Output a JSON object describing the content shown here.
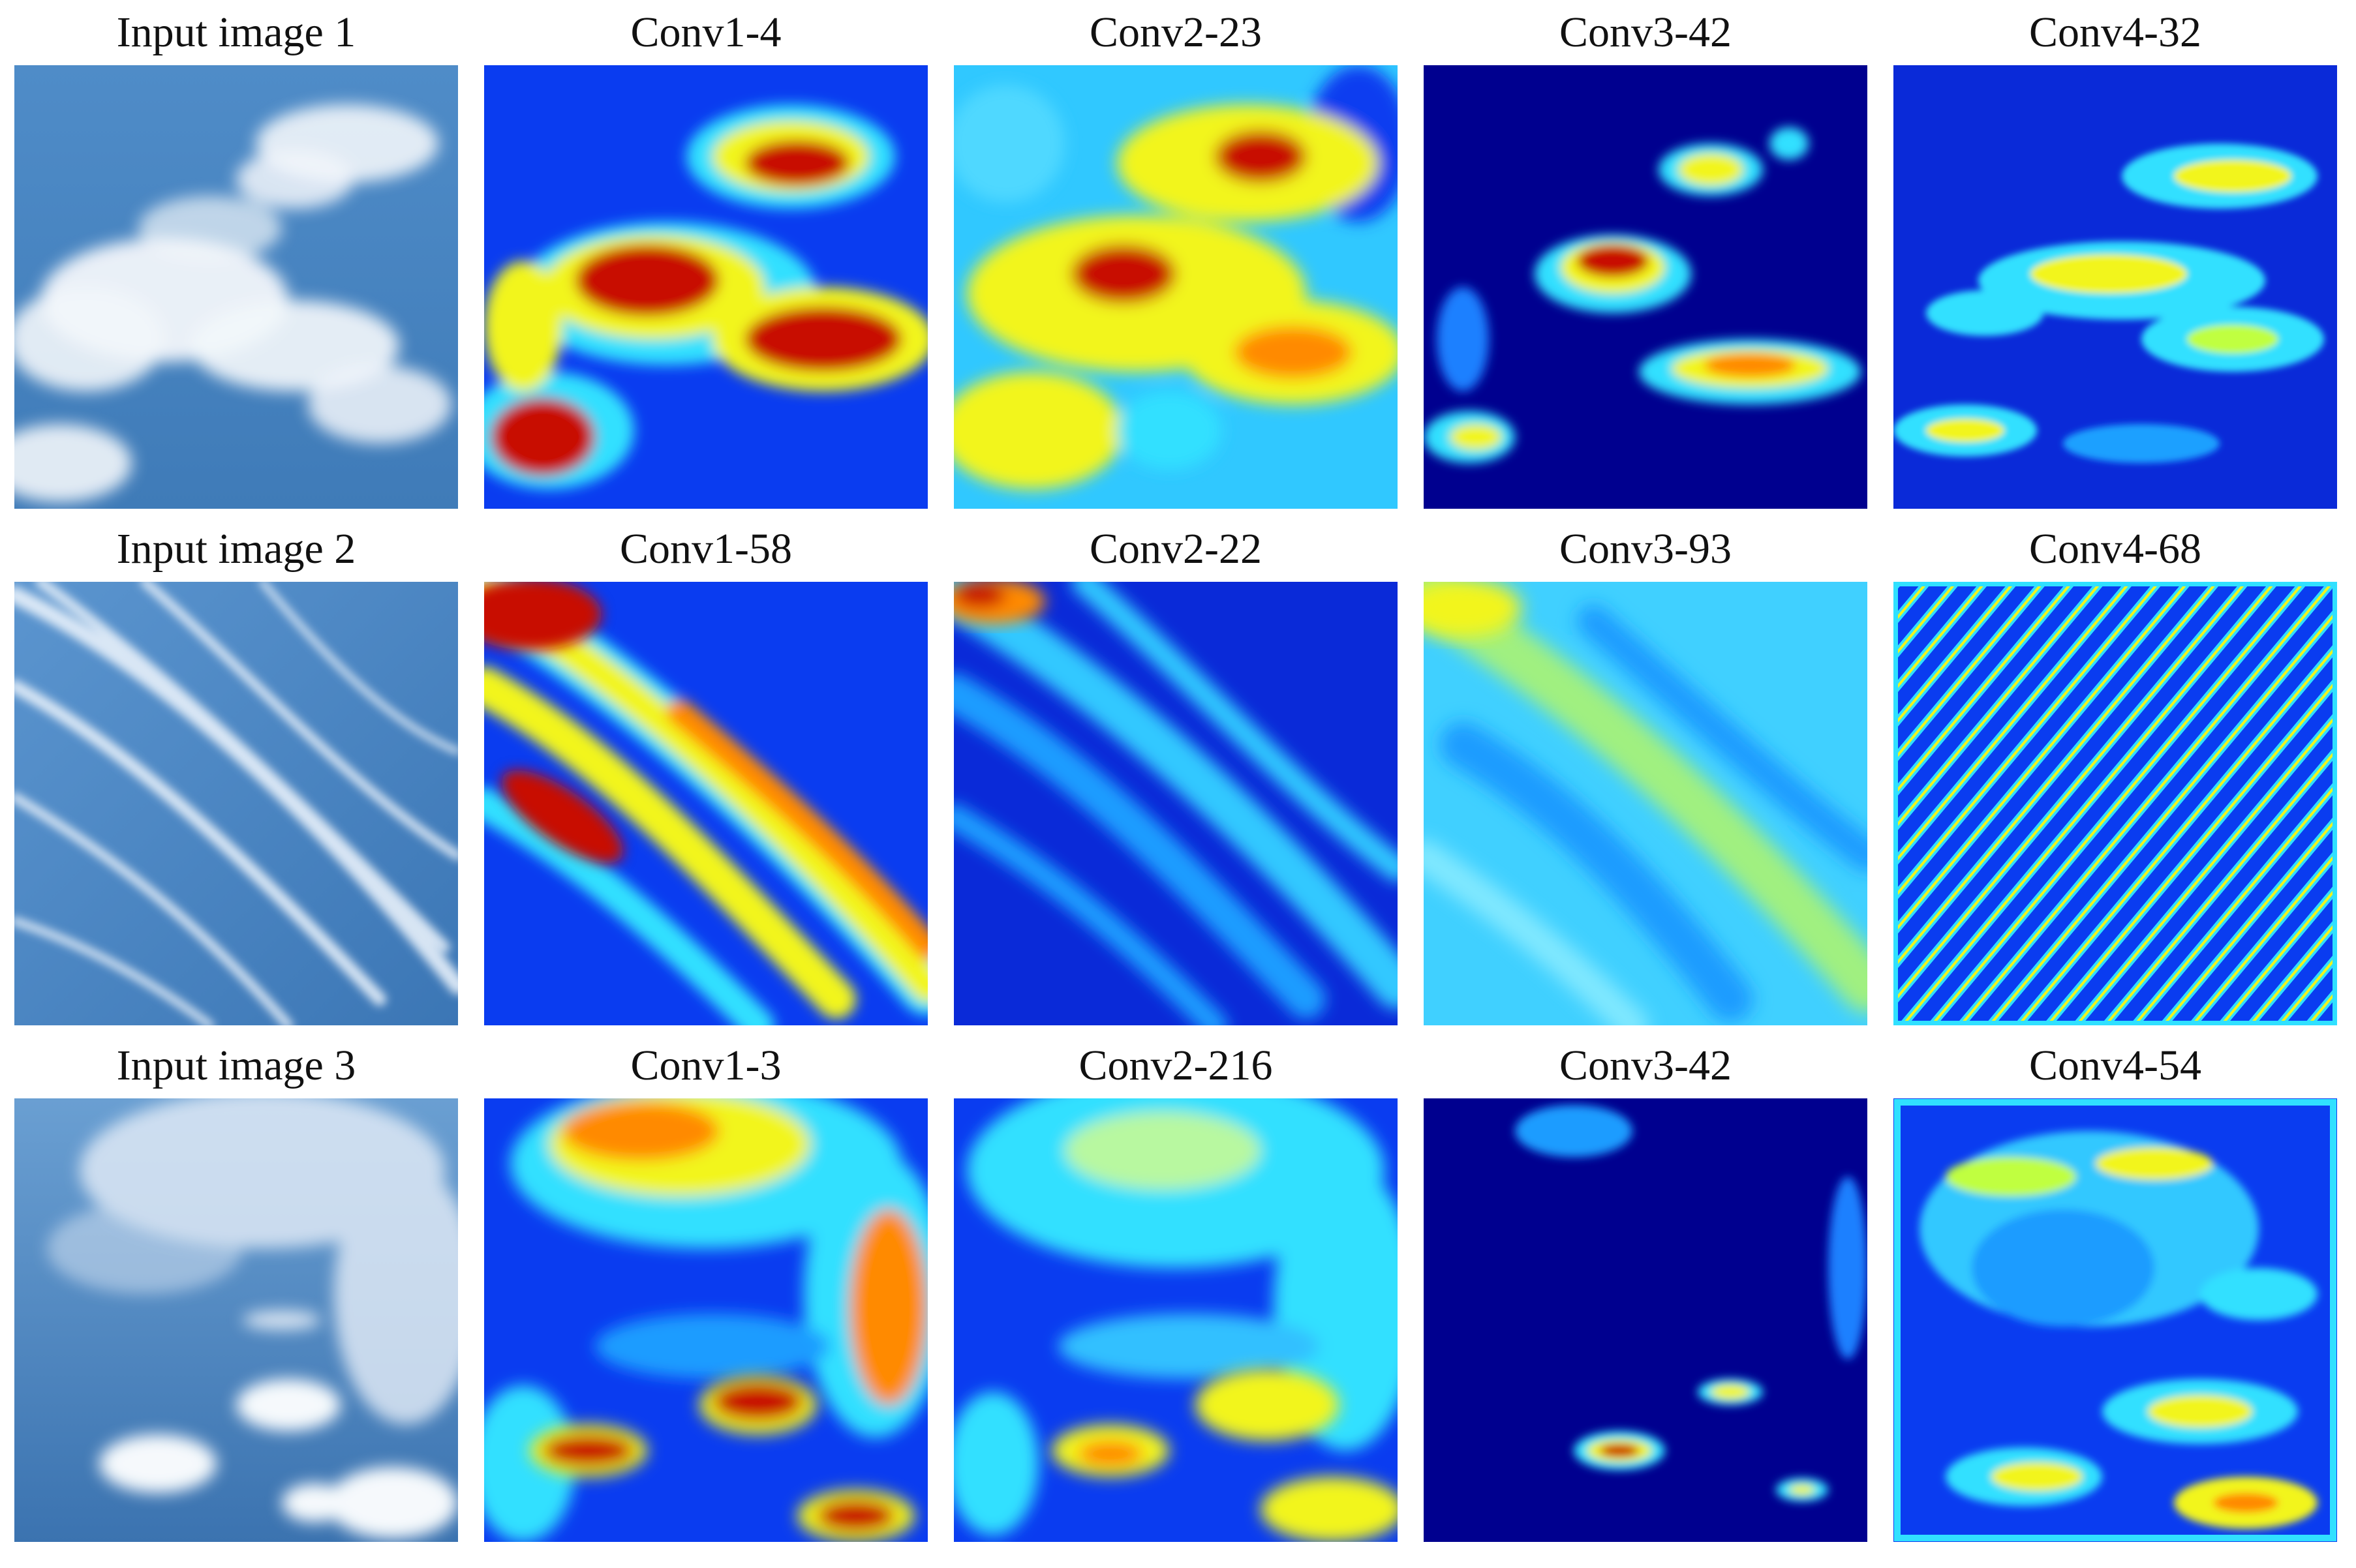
{
  "rows": [
    {
      "captions": [
        "Input image 1",
        "Conv1-4",
        "Conv2-23",
        "Conv3-42",
        "Conv4-32"
      ],
      "panels": [
        {
          "kind": "photo",
          "scene": "cumulus-sky",
          "icon": "sky-photo-icon"
        },
        {
          "kind": "feature-map",
          "style": "jet",
          "icon": "heatmap-icon"
        },
        {
          "kind": "feature-map",
          "style": "jet",
          "icon": "heatmap-icon"
        },
        {
          "kind": "feature-map",
          "style": "jet",
          "icon": "heatmap-icon"
        },
        {
          "kind": "feature-map",
          "style": "jet",
          "icon": "heatmap-icon"
        }
      ]
    },
    {
      "captions": [
        "Input image 2",
        "Conv1-58",
        "Conv2-22",
        "Conv3-93",
        "Conv4-68"
      ],
      "panels": [
        {
          "kind": "photo",
          "scene": "cirrus-sky",
          "icon": "sky-photo-icon"
        },
        {
          "kind": "feature-map",
          "style": "jet",
          "icon": "heatmap-icon"
        },
        {
          "kind": "feature-map",
          "style": "jet",
          "icon": "heatmap-icon"
        },
        {
          "kind": "feature-map",
          "style": "jet",
          "icon": "heatmap-icon"
        },
        {
          "kind": "feature-map",
          "style": "jet",
          "icon": "heatmap-icon"
        }
      ]
    },
    {
      "captions": [
        "Input image 3",
        "Conv1-3",
        "Conv2-216",
        "Conv3-42",
        "Conv4-54"
      ],
      "panels": [
        {
          "kind": "photo",
          "scene": "mixed-sky",
          "icon": "sky-photo-icon"
        },
        {
          "kind": "feature-map",
          "style": "jet",
          "icon": "heatmap-icon"
        },
        {
          "kind": "feature-map",
          "style": "jet",
          "icon": "heatmap-icon"
        },
        {
          "kind": "feature-map",
          "style": "jet",
          "icon": "heatmap-icon"
        },
        {
          "kind": "feature-map",
          "style": "jet",
          "icon": "heatmap-icon"
        }
      ]
    }
  ],
  "colors": {
    "sky_blue": "#4a86c2",
    "cloud_white": "#f4f7fb",
    "jet_dark_blue": "#00008f",
    "jet_blue": "#0a3cf0",
    "jet_cyan": "#30e0ff",
    "jet_yellow": "#f2f51c",
    "jet_orange": "#ff8a00",
    "jet_red": "#c80a00"
  }
}
